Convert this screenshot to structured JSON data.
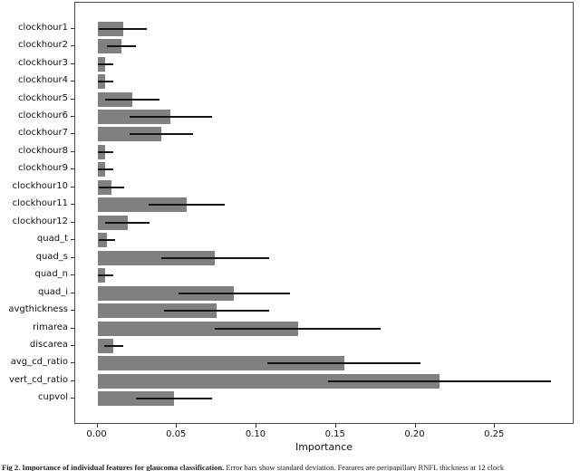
{
  "chart_data": {
    "type": "bar",
    "orientation": "horizontal",
    "title": "",
    "xlabel": "Importance",
    "ylabel": "",
    "categories": [
      "clockhour1",
      "clockhour2",
      "clockhour3",
      "clockhour4",
      "clockhour5",
      "clockhour6",
      "clockhour7",
      "clockhour8",
      "clockhour9",
      "clockhour10",
      "clockhour11",
      "clockhour12",
      "quad_t",
      "quad_s",
      "quad_n",
      "quad_i",
      "avgthickness",
      "rimarea",
      "discarea",
      "avg_cd_ratio",
      "vert_cd_ratio",
      "cupvol"
    ],
    "series": [
      {
        "name": "Importance",
        "values": [
          0.016,
          0.015,
          0.005,
          0.005,
          0.022,
          0.046,
          0.04,
          0.005,
          0.005,
          0.009,
          0.056,
          0.019,
          0.006,
          0.074,
          0.005,
          0.086,
          0.075,
          0.126,
          0.01,
          0.155,
          0.215,
          0.048
        ],
        "errors": [
          0.015,
          0.009,
          0.005,
          0.005,
          0.017,
          0.026,
          0.02,
          0.005,
          0.005,
          0.008,
          0.024,
          0.014,
          0.005,
          0.034,
          0.005,
          0.035,
          0.033,
          0.052,
          0.006,
          0.048,
          0.07,
          0.024
        ]
      }
    ],
    "xticks": [
      {
        "label": "0.00",
        "value": 0.0
      },
      {
        "label": "0.05",
        "value": 0.05
      },
      {
        "label": "0.10",
        "value": 0.1
      },
      {
        "label": "0.15",
        "value": 0.15
      },
      {
        "label": "0.20",
        "value": 0.2
      },
      {
        "label": "0.25",
        "value": 0.25
      }
    ],
    "xlim": [
      -0.014,
      0.3
    ],
    "grid": false,
    "legend": false,
    "bar_color": "#808080",
    "error_color": "#141414"
  },
  "caption": {
    "bold": "Fig 2. Importance of individual features for glaucoma classification.",
    "rest": " Error bars show standard deviation. Features are peripapillary RNFL thickness at 12 clock"
  }
}
